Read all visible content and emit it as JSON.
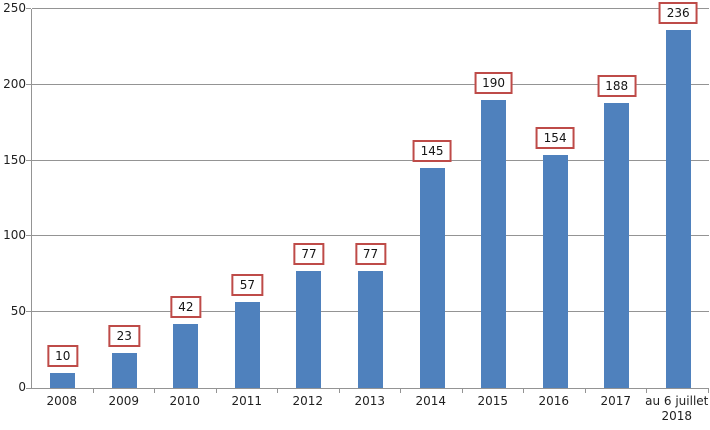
{
  "chart_data": {
    "type": "bar",
    "categories": [
      "2008",
      "2009",
      "2010",
      "2011",
      "2012",
      "2013",
      "2014",
      "2015",
      "2016",
      "2017",
      "au 6 juillet\n2018"
    ],
    "values": [
      10,
      23,
      42,
      57,
      77,
      77,
      145,
      190,
      154,
      188,
      236
    ],
    "title": "",
    "xlabel": "",
    "ylabel": "",
    "ylim": [
      0,
      250
    ],
    "yticks": [
      0,
      50,
      100,
      150,
      200,
      250
    ],
    "grid": true,
    "legend": "none",
    "data_labels": true,
    "colors": {
      "bar": "#4f81bd",
      "data_label_border": "#be4b48",
      "data_label_background": "#ffffff",
      "data_label_text": "#151515",
      "axis_line": "#949494",
      "gridline": "#949494",
      "axis_text": "#1f1f1f"
    }
  }
}
